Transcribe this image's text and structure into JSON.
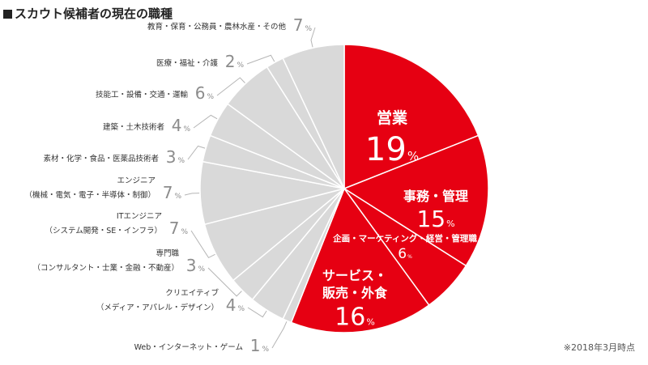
{
  "title": "スカウト候補者の現在の職種",
  "note": "※2018年3月時点",
  "colors": {
    "highlight": "#e60012",
    "other": "#d9d9d9",
    "slice_border": "#ffffff",
    "leader_line": "#b5b5b5",
    "outer_label": "#333333",
    "outer_value": "#8c8c8c",
    "inner_label": "#ffffff"
  },
  "chart_data": {
    "type": "pie",
    "unit": "%",
    "slices": [
      {
        "lines": [
          "営業"
        ],
        "value": 19,
        "highlight": true
      },
      {
        "lines": [
          "事務・管理"
        ],
        "value": 15,
        "highlight": true
      },
      {
        "lines": [
          "企画・マーケティング・経営・管理職"
        ],
        "value": 6,
        "highlight": true
      },
      {
        "lines": [
          "サービス・",
          "販売・外食"
        ],
        "value": 16,
        "highlight": true
      },
      {
        "lines": [
          "Web・インターネット・ゲーム"
        ],
        "value": 1,
        "highlight": false
      },
      {
        "lines": [
          "クリエイティブ",
          "（メディア・アパレル・デザイン）"
        ],
        "value": 4,
        "highlight": false
      },
      {
        "lines": [
          "専門職",
          "（コンサルタント・士業・金融・不動産）"
        ],
        "value": 3,
        "highlight": false
      },
      {
        "lines": [
          "ITエンジニア",
          "（システム開発・SE・インフラ）"
        ],
        "value": 7,
        "highlight": false
      },
      {
        "lines": [
          "エンジニア",
          "（機械・電気・電子・半導体・制御）"
        ],
        "value": 7,
        "highlight": false
      },
      {
        "lines": [
          "素材・化学・食品・医薬品技術者"
        ],
        "value": 3,
        "highlight": false
      },
      {
        "lines": [
          "建築・土木技術者"
        ],
        "value": 4,
        "highlight": false
      },
      {
        "lines": [
          "技能工・設備・交通・運輸"
        ],
        "value": 6,
        "highlight": false
      },
      {
        "lines": [
          "医療・福祉・介護"
        ],
        "value": 2,
        "highlight": false
      },
      {
        "lines": [
          "教育・保育・公務員・農林水産・その他"
        ],
        "value": 7,
        "highlight": false
      }
    ]
  }
}
